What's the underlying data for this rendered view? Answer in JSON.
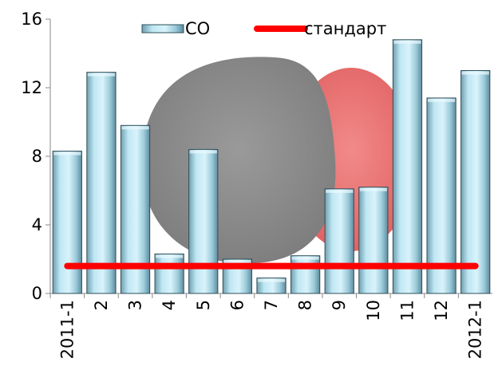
{
  "chart_data": {
    "type": "bar",
    "title": "",
    "xlabel": "",
    "ylabel": "",
    "categories": [
      "2011-1",
      "2",
      "3",
      "4",
      "5",
      "6",
      "7",
      "8",
      "9",
      "10",
      "11",
      "12",
      "2012-1"
    ],
    "series": [
      {
        "name": "CO",
        "type": "bar",
        "values": [
          8.3,
          12.9,
          9.8,
          2.3,
          8.4,
          2.0,
          0.9,
          2.2,
          6.1,
          6.2,
          14.8,
          11.4,
          13.0
        ]
      },
      {
        "name": "стандарт",
        "type": "line",
        "values": [
          1.6,
          1.6,
          1.6,
          1.6,
          1.6,
          1.6,
          1.6,
          1.6,
          1.6,
          1.6,
          1.6,
          1.6,
          1.6
        ]
      }
    ],
    "ylim": [
      0,
      16
    ],
    "yticks": [
      "0",
      "4",
      "8",
      "12",
      "16"
    ],
    "grid": false,
    "legend_position": "top",
    "colors": {
      "bar_fill": "#a9d8e6",
      "bar_edge": "#2f4f5a",
      "line": "#ff0000",
      "decor_gray": "#8c8c8c",
      "decor_red": "#f07070"
    }
  }
}
